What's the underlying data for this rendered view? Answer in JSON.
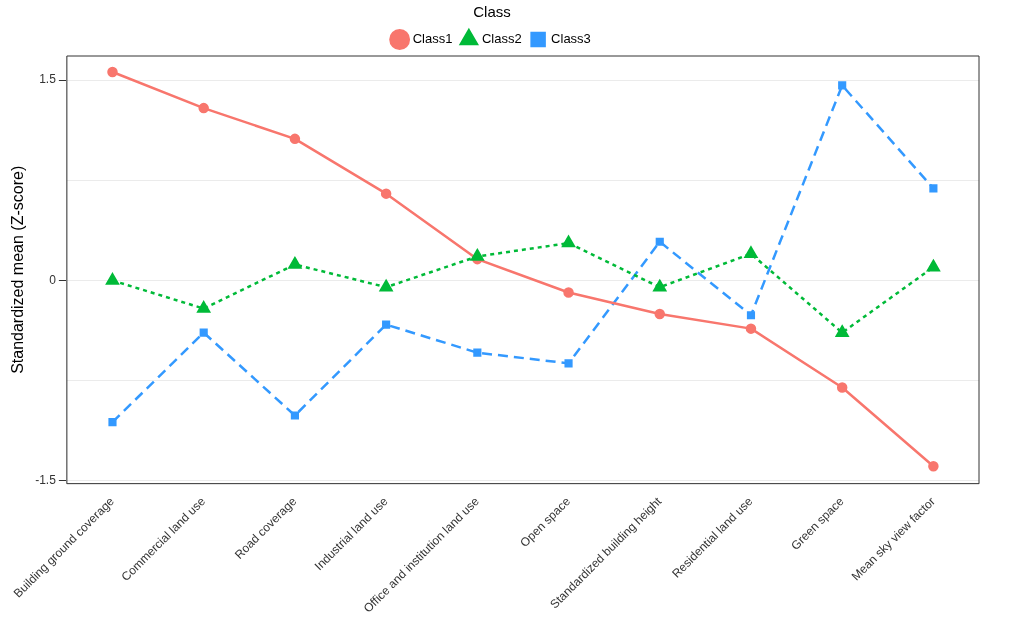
{
  "chart_data": {
    "type": "line",
    "ylabel": "Standardized mean (Z-score)",
    "legend_title": "Class",
    "legend": "top",
    "categories": [
      "Building ground coverage",
      "Commercial land use",
      "Road coverage",
      "Industrial land use",
      "Office and institution land use",
      "Open space",
      "Standardized building height",
      "Residential land use",
      "Green space",
      "Mean sky view factor"
    ],
    "series": [
      {
        "name": "Class1",
        "color": "#f8766d",
        "marker": "circle",
        "line_style": "solid",
        "values": [
          1.56,
          1.29,
          1.06,
          0.65,
          0.16,
          -0.09,
          -0.25,
          -0.36,
          -0.8,
          -1.39
        ]
      },
      {
        "name": "Class2",
        "color": "#00ba38",
        "marker": "triangle",
        "line_style": "dotted",
        "values": [
          0,
          -0.21,
          0.12,
          -0.05,
          0.18,
          0.28,
          -0.05,
          0.2,
          -0.39,
          0.1
        ]
      },
      {
        "name": "Class3",
        "color": "#3399ff",
        "marker": "square",
        "line_style": "dashed",
        "values": [
          -1.06,
          -0.39,
          -1.01,
          -0.33,
          -0.54,
          -0.62,
          0.29,
          -0.26,
          1.46,
          0.69
        ]
      }
    ],
    "ylim": [
      -1.52,
      1.68
    ],
    "yticks": [
      {
        "value": -1.5,
        "label": "-1.5"
      },
      {
        "value": -0.75,
        "label": null
      },
      0,
      {
        "value": 0.75,
        "label": null
      },
      1.5
    ],
    "grid": "y"
  }
}
